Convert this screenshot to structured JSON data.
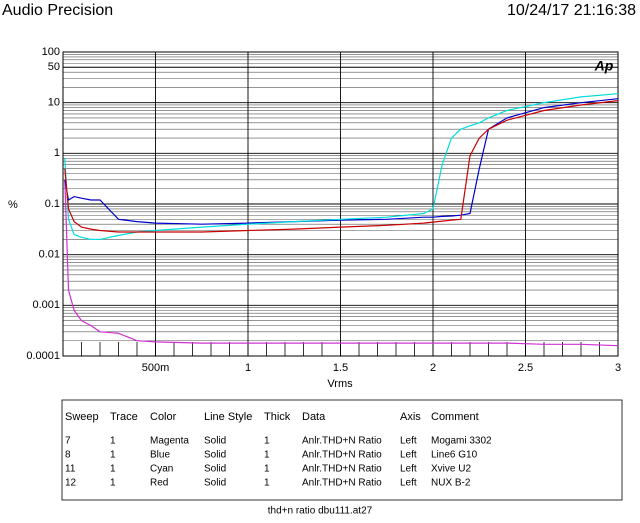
{
  "header": {
    "title": "Audio Precision",
    "timestamp": "10/24/17 21:16:38"
  },
  "chart_data": {
    "type": "line",
    "logo": "Ap",
    "ylabel": "%",
    "xlabel": "Vrms",
    "x": [
      0.01,
      0.03,
      0.06,
      0.1,
      0.15,
      0.2,
      0.3,
      0.4,
      0.5,
      0.75,
      1,
      1.25,
      1.5,
      1.75,
      1.95,
      2.0,
      2.05,
      2.1,
      2.15,
      2.2,
      2.25,
      2.3,
      2.4,
      2.6,
      2.8,
      3.0
    ],
    "series": [
      {
        "name": "Mogami 3302",
        "color": "#d030d0",
        "values": [
          0.3,
          0.002,
          0.0008,
          0.0005,
          0.0004,
          0.0003,
          0.00028,
          0.0002,
          0.00019,
          0.00018,
          0.00018,
          0.00018,
          0.00018,
          0.00018,
          0.00018,
          0.00018,
          0.00018,
          0.00018,
          0.00018,
          0.00018,
          0.00018,
          0.00018,
          0.00018,
          0.00017,
          0.00017,
          0.00016
        ]
      },
      {
        "name": "Line6 G10",
        "color": "#0000cc",
        "values": [
          0.3,
          0.12,
          0.14,
          0.13,
          0.12,
          0.12,
          0.05,
          0.045,
          0.042,
          0.04,
          0.042,
          0.045,
          0.048,
          0.05,
          0.055,
          0.055,
          0.057,
          0.058,
          0.06,
          0.065,
          0.5,
          3,
          5,
          8,
          10,
          12
        ]
      },
      {
        "name": "Xvive U2",
        "color": "#00dddd",
        "values": [
          0.8,
          0.05,
          0.025,
          0.022,
          0.02,
          0.02,
          0.024,
          0.028,
          0.03,
          0.035,
          0.04,
          0.045,
          0.05,
          0.055,
          0.065,
          0.08,
          0.6,
          2,
          3,
          3.5,
          4,
          5,
          7,
          10,
          13,
          15
        ]
      },
      {
        "name": "NUX B-2",
        "color": "#cc0000",
        "values": [
          0.5,
          0.08,
          0.045,
          0.035,
          0.032,
          0.03,
          0.028,
          0.028,
          0.028,
          0.028,
          0.03,
          0.032,
          0.035,
          0.038,
          0.042,
          0.044,
          0.046,
          0.048,
          0.05,
          0.9,
          2,
          3,
          4.5,
          7,
          9,
          11
        ]
      }
    ],
    "xlim": [
      0,
      3
    ],
    "xticks": [
      {
        "value": 0.5,
        "label": "500m"
      },
      1,
      1.5,
      2,
      2.5,
      3
    ],
    "ylim": [
      0.0001,
      100
    ],
    "yticks": [
      100,
      50,
      10,
      1,
      0.1,
      0.01,
      0.001,
      0.0001
    ],
    "log_y": true,
    "grid": true
  },
  "table": {
    "columns": [
      "Sweep",
      "Trace",
      "Color",
      "Line Style",
      "Thick",
      "Data",
      "Axis",
      "Comment"
    ],
    "rows": [
      [
        "7",
        "1",
        "Magenta",
        "Solid",
        "1",
        "Anlr.THD+N Ratio",
        "Left"
      ],
      [
        "8",
        "1",
        "Blue",
        "Solid",
        "1",
        "Anlr.THD+N Ratio",
        "Left"
      ],
      [
        "11",
        "1",
        "Cyan",
        "Solid",
        "1",
        "Anlr.THD+N Ratio",
        "Left"
      ],
      [
        "12",
        "1",
        "Red",
        "Solid",
        "1",
        "Anlr.THD+N Ratio",
        "Left"
      ]
    ]
  },
  "footer": "thd+n ratio dbu111.at27"
}
